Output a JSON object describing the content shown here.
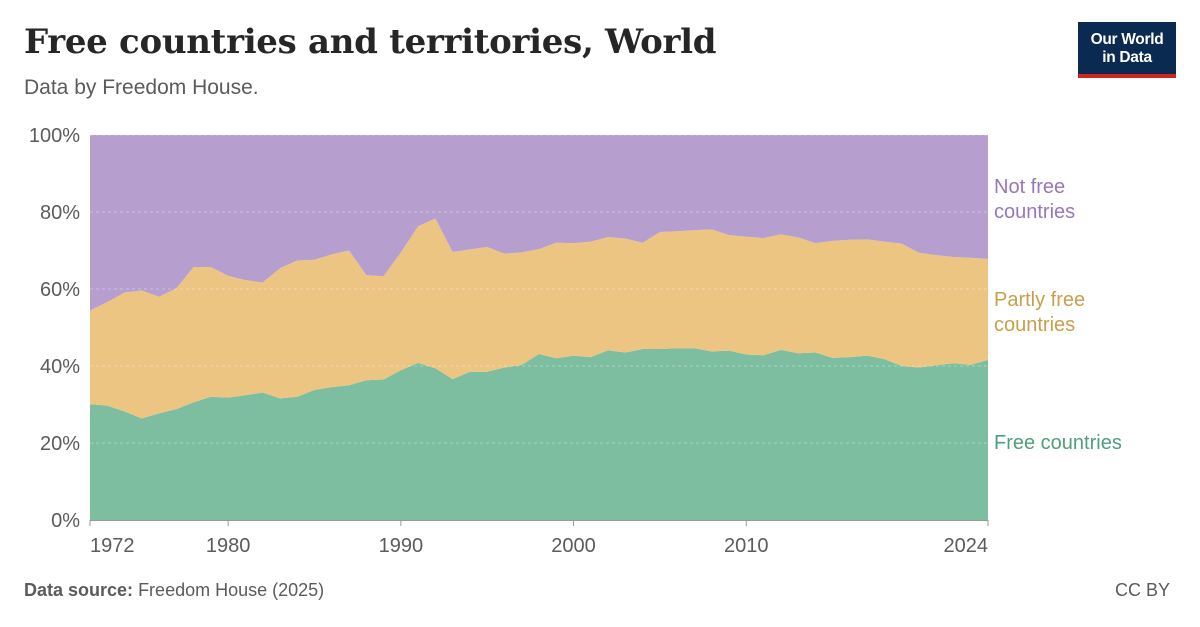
{
  "header": {
    "title": "Free countries and territories, World",
    "subtitle": "Data by Freedom House.",
    "logo_line1": "Our World",
    "logo_line2": "in Data"
  },
  "footer": {
    "source_label": "Data source:",
    "source_text": "Freedom House (2025)",
    "license": "CC BY"
  },
  "chart_data": {
    "type": "area",
    "stacked": true,
    "title": "Free countries and territories, World",
    "subtitle": "Data by Freedom House.",
    "xlabel": "",
    "ylabel": "",
    "ylim": [
      0,
      100
    ],
    "xlim": [
      1972,
      2024
    ],
    "y_ticks": [
      0,
      20,
      40,
      60,
      80,
      100
    ],
    "y_tick_labels": [
      "0%",
      "20%",
      "40%",
      "60%",
      "80%",
      "100%"
    ],
    "x_ticks": [
      1972,
      1980,
      1990,
      2000,
      2010,
      2024
    ],
    "x_tick_labels": [
      "1972",
      "1980",
      "1990",
      "2000",
      "2010",
      "2024"
    ],
    "grid": true,
    "legend": "right, inline labels",
    "x": [
      1972,
      1973,
      1974,
      1975,
      1976,
      1977,
      1978,
      1979,
      1980,
      1981,
      1982,
      1983,
      1984,
      1985,
      1986,
      1987,
      1988,
      1989,
      1990,
      1991,
      1992,
      1993,
      1994,
      1995,
      1996,
      1997,
      1998,
      1999,
      2000,
      2001,
      2002,
      2003,
      2004,
      2005,
      2006,
      2007,
      2008,
      2009,
      2010,
      2011,
      2012,
      2013,
      2014,
      2015,
      2016,
      2017,
      2018,
      2019,
      2020,
      2021,
      2022,
      2023,
      2024
    ],
    "series": [
      {
        "name": "Free countries",
        "label_lines": [
          "Free countries"
        ],
        "color": "#7dbea0",
        "values": [
          30.1,
          29.7,
          28.2,
          26.4,
          27.7,
          28.8,
          30.6,
          32.0,
          31.8,
          32.4,
          33.1,
          31.6,
          32.0,
          33.8,
          34.5,
          35.0,
          36.3,
          36.5,
          38.9,
          40.8,
          39.4,
          36.6,
          38.5,
          38.5,
          39.6,
          40.3,
          43.1,
          42.0,
          42.7,
          42.3,
          44.1,
          43.5,
          44.4,
          44.4,
          44.6,
          44.6,
          43.8,
          44.0,
          43.0,
          42.8,
          44.2,
          43.3,
          43.5,
          42.1,
          42.3,
          42.7,
          41.8,
          40.0,
          39.6,
          40.2,
          40.7,
          40.3,
          41.6
        ]
      },
      {
        "name": "Partly free countries",
        "label_lines": [
          "Partly free",
          "countries"
        ],
        "color": "#ecc582",
        "values": [
          24.3,
          26.9,
          30.9,
          33.2,
          30.3,
          31.4,
          35.1,
          33.7,
          31.6,
          29.9,
          28.6,
          33.8,
          35.4,
          33.8,
          34.5,
          35.0,
          27.3,
          26.8,
          30.6,
          35.5,
          38.9,
          33.0,
          31.8,
          32.4,
          29.6,
          29.2,
          27.3,
          30.0,
          29.2,
          30.0,
          29.4,
          29.6,
          27.6,
          30.4,
          30.4,
          30.7,
          31.7,
          30.0,
          30.6,
          30.4,
          30.0,
          30.1,
          28.4,
          30.4,
          30.5,
          30.2,
          30.5,
          31.8,
          29.8,
          28.6,
          27.6,
          27.8,
          26.2
        ]
      },
      {
        "name": "Not free countries",
        "label_lines": [
          "Not free",
          "countries"
        ],
        "color": "#b69ecf",
        "values": [
          45.6,
          43.4,
          40.9,
          40.4,
          42.0,
          39.8,
          34.3,
          34.3,
          36.6,
          37.7,
          38.3,
          34.6,
          32.6,
          32.4,
          31.0,
          30.0,
          36.4,
          36.7,
          30.5,
          23.7,
          21.7,
          30.4,
          29.7,
          29.1,
          30.8,
          30.5,
          29.6,
          28.0,
          28.1,
          27.7,
          26.5,
          26.9,
          28.0,
          25.2,
          25.0,
          24.7,
          24.5,
          26.0,
          26.4,
          26.8,
          25.8,
          26.6,
          28.1,
          27.5,
          27.2,
          27.1,
          27.7,
          28.2,
          30.6,
          31.2,
          31.7,
          31.9,
          32.2
        ]
      }
    ]
  }
}
